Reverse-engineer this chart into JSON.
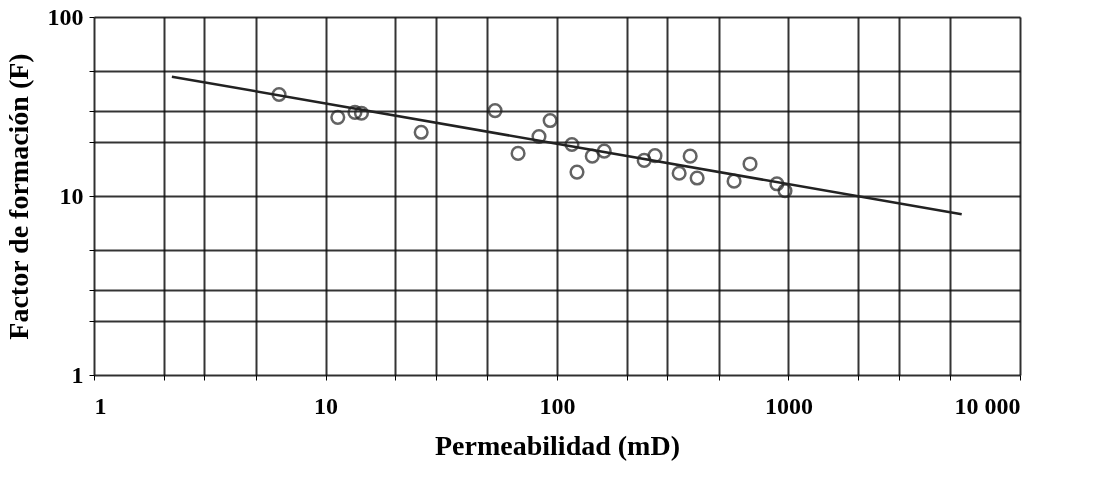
{
  "chart_data": {
    "type": "scatter",
    "xlabel": "Permeabilidad (mD)",
    "ylabel": "Factor de formación  (F)",
    "log": "xy",
    "grid": true,
    "marker": "circle",
    "xlim": [
      1,
      10000
    ],
    "ylim": [
      1,
      100
    ],
    "xticks": [
      1,
      {
        "value": 2,
        "label": null
      },
      {
        "value": 3,
        "label": null
      },
      {
        "value": 5,
        "label": null
      },
      10,
      {
        "value": 20,
        "label": null
      },
      {
        "value": 30,
        "label": null
      },
      {
        "value": 50,
        "label": null
      },
      100,
      {
        "value": 200,
        "label": null
      },
      {
        "value": 300,
        "label": null
      },
      {
        "value": 500,
        "label": null
      },
      1000,
      {
        "value": 2000,
        "label": null
      },
      {
        "value": 3000,
        "label": null
      },
      {
        "value": 5000,
        "label": null
      },
      {
        "value": 10000,
        "label": "10 000"
      }
    ],
    "yticks": [
      1,
      {
        "value": 2,
        "label": null
      },
      {
        "value": 3,
        "label": null
      },
      {
        "value": 5,
        "label": null
      },
      10,
      {
        "value": 20,
        "label": null
      },
      {
        "value": 30,
        "label": null
      },
      {
        "value": 50,
        "label": null
      },
      100
    ],
    "series": [
      {
        "color": "#222222",
        "x": [
          6.3,
          11.3,
          13.4,
          14.3,
          25.9,
          54,
          67.9,
          83.6,
          93.4,
          116,
          122,
          142,
          160,
          238,
          265,
          376,
          337,
          403,
          582,
          682,
          891,
          966
        ],
        "values": [
          36.9,
          27.5,
          29.3,
          29,
          22.7,
          30,
          17.3,
          21.5,
          26.4,
          19.4,
          13.6,
          16.7,
          17.8,
          15.8,
          16.8,
          16.7,
          13.4,
          12.6,
          12.1,
          15.1,
          11.7,
          10.7
        ]
      },
      {
        "type": "line",
        "marker": "none",
        "color": "#222222",
        "x": [
          2.17,
          5600
        ],
        "values": [
          46.4,
          7.9
        ]
      }
    ]
  }
}
